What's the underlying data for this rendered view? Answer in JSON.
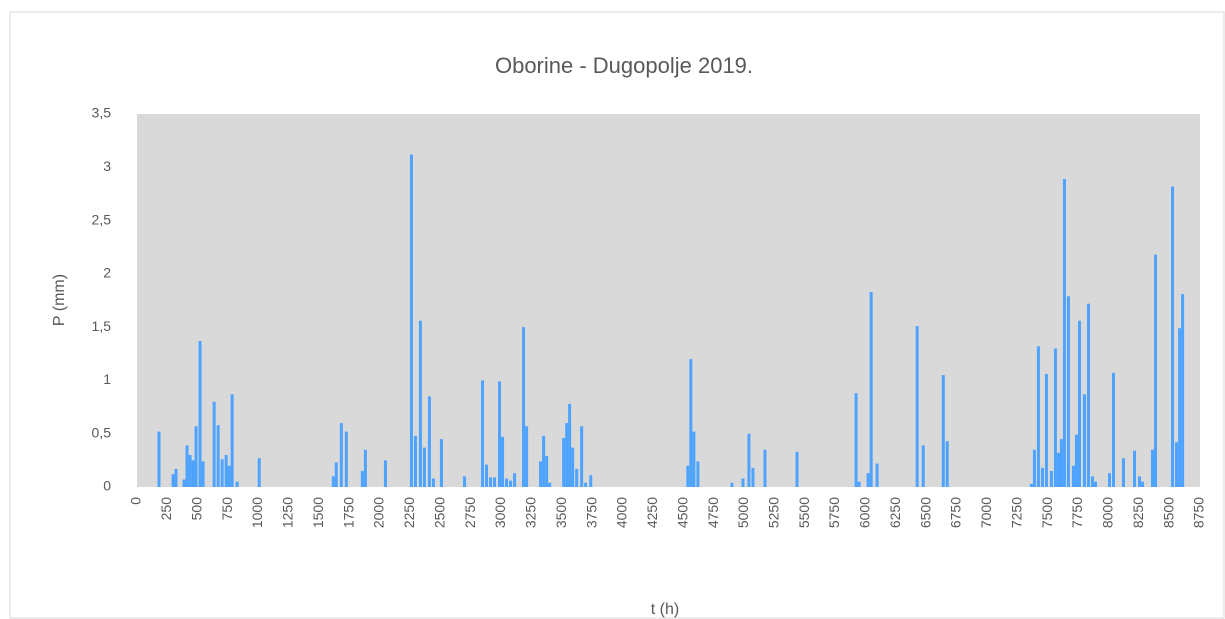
{
  "chart_data": {
    "type": "bar",
    "title": "Oborine - Dugopolje 2019.",
    "xlabel": "t (h)",
    "ylabel": "P (mm)",
    "color": "#4da3ff",
    "background": "#d9d9d9",
    "x": [
      181,
      297,
      321,
      387,
      412,
      437,
      462,
      486,
      519,
      544,
      635,
      668,
      701,
      734,
      758,
      783,
      824,
      1006,
      1616,
      1640,
      1682,
      1723,
      1855,
      1880,
      2045,
      2259,
      2292,
      2333,
      2366,
      2407,
      2440,
      2506,
      2696,
      2844,
      2877,
      2910,
      2943,
      2984,
      3009,
      3042,
      3075,
      3108,
      3182,
      3207,
      3322,
      3347,
      3372,
      3397,
      3512,
      3537,
      3561,
      3586,
      3619,
      3660,
      3693,
      3735,
      4534,
      4559,
      4584,
      4617,
      4897,
      4988,
      5037,
      5070,
      5169,
      5433,
      5919,
      5944,
      6018,
      6043,
      6092,
      6422,
      6472,
      6637,
      6669,
      7362,
      7387,
      7420,
      7453,
      7486,
      7527,
      7560,
      7585,
      7609,
      7634,
      7667,
      7708,
      7733,
      7758,
      7799,
      7832,
      7865,
      7890,
      8005,
      8038,
      8120,
      8211,
      8252,
      8277,
      8359,
      8384,
      8524,
      8557,
      8582,
      8607
    ],
    "values": [
      0.52,
      0.12,
      0.17,
      0.07,
      0.39,
      0.3,
      0.25,
      0.57,
      1.37,
      0.24,
      0.8,
      0.58,
      0.26,
      0.3,
      0.2,
      0.87,
      0.05,
      0.27,
      0.1,
      0.23,
      0.6,
      0.52,
      0.15,
      0.35,
      0.25,
      3.12,
      0.48,
      1.56,
      0.37,
      0.85,
      0.08,
      0.45,
      0.1,
      1.0,
      0.21,
      0.09,
      0.09,
      0.99,
      0.47,
      0.08,
      0.06,
      0.13,
      1.5,
      0.57,
      0.24,
      0.48,
      0.29,
      0.04,
      0.46,
      0.6,
      0.78,
      0.37,
      0.17,
      0.57,
      0.04,
      0.11,
      0.2,
      1.2,
      0.52,
      0.24,
      0.04,
      0.08,
      0.5,
      0.18,
      0.35,
      0.33,
      0.88,
      0.05,
      0.13,
      1.83,
      0.22,
      1.51,
      0.39,
      1.05,
      0.43,
      0.03,
      0.35,
      1.32,
      0.18,
      1.06,
      0.15,
      1.3,
      0.32,
      0.45,
      2.89,
      1.79,
      0.2,
      0.49,
      1.56,
      0.87,
      1.72,
      0.1,
      0.05,
      0.13,
      1.07,
      0.27,
      0.34,
      0.1,
      0.05,
      0.35,
      2.18,
      2.82,
      0.42,
      1.49,
      1.81
    ],
    "xlim": [
      0,
      8750
    ],
    "xticks": [
      0,
      250,
      500,
      750,
      1000,
      1250,
      1500,
      1750,
      2000,
      2250,
      2500,
      2750,
      3000,
      3250,
      3500,
      3750,
      4000,
      4250,
      4500,
      4750,
      5000,
      5250,
      5500,
      5750,
      6000,
      6250,
      6500,
      6750,
      7000,
      7250,
      7500,
      7750,
      8000,
      8250,
      8500,
      8750
    ],
    "ylim": [
      0,
      3.5
    ],
    "yticks": [
      0,
      {
        "value": 0.5,
        "label": "0,5"
      },
      1,
      {
        "value": 1.5,
        "label": "1,5"
      },
      2,
      {
        "value": 2.5,
        "label": "2,5"
      },
      3,
      {
        "value": 3.5,
        "label": "3,5"
      }
    ]
  }
}
